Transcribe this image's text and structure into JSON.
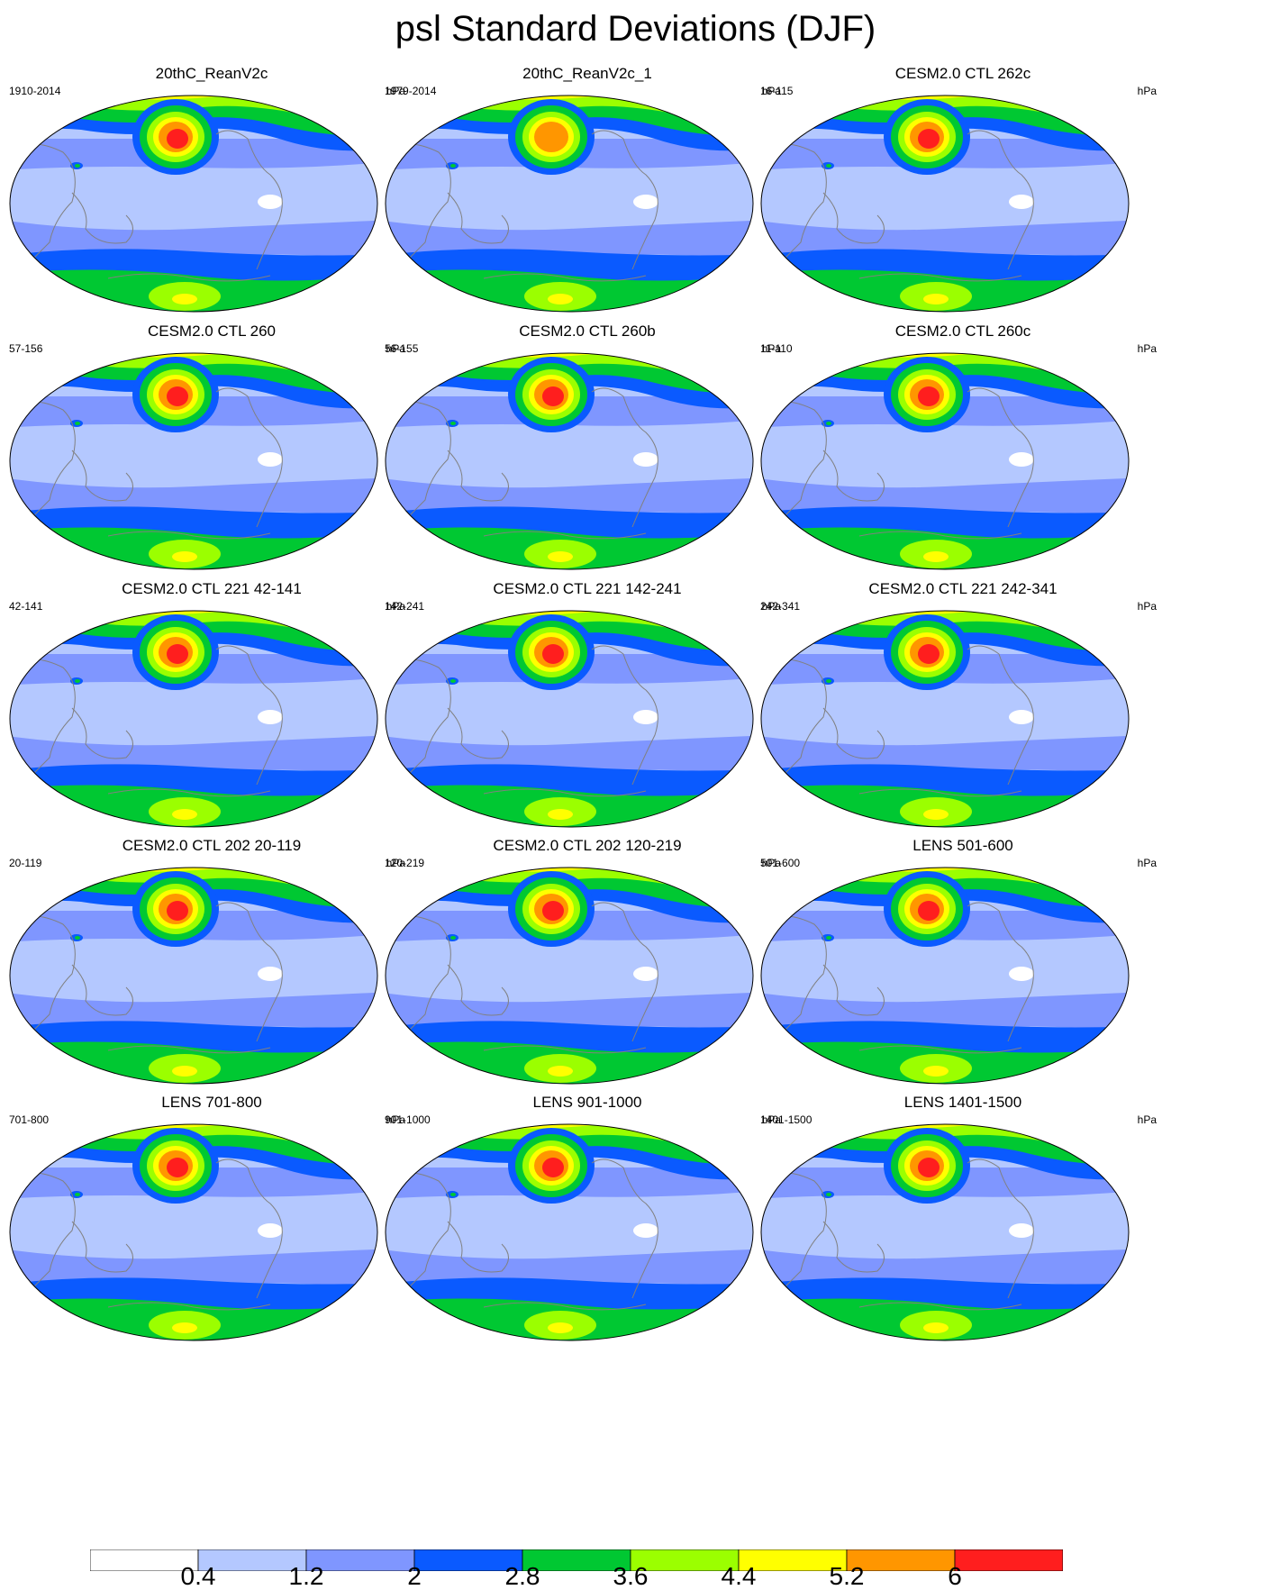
{
  "title": "psl Standard Deviations (DJF)",
  "units": "hPa",
  "panels": [
    {
      "title": "20thC_ReanV2c",
      "years": "1910-2014",
      "units": "hPa",
      "aleutian_max": 6.0,
      "ne_atlantic_max": 6.0
    },
    {
      "title": "20thC_ReanV2c_1",
      "years": "1979-2014",
      "units": "hPa",
      "aleutian_max": 5.2,
      "ne_atlantic_max": 6.0
    },
    {
      "title": "CESM2.0 CTL 262c",
      "years": "16-115",
      "units": "hPa",
      "aleutian_max": 6.0,
      "ne_atlantic_max": 6.0
    },
    {
      "title": "CESM2.0 CTL 260",
      "years": "57-156",
      "units": "hPa",
      "aleutian_max": 6.0,
      "ne_atlantic_max": 6.0
    },
    {
      "title": "CESM2.0 CTL 260b",
      "years": "56-155",
      "units": "hPa",
      "aleutian_max": 6.0,
      "ne_atlantic_max": 5.2
    },
    {
      "title": "CESM2.0 CTL 260c",
      "years": "11-110",
      "units": "hPa",
      "aleutian_max": 6.0,
      "ne_atlantic_max": 6.0
    },
    {
      "title": "CESM2.0 CTL 221 42-141",
      "years": "42-141",
      "units": "hPa",
      "aleutian_max": 6.0,
      "ne_atlantic_max": 6.0
    },
    {
      "title": "CESM2.0 CTL 221 142-241",
      "years": "142-241",
      "units": "hPa",
      "aleutian_max": 6.0,
      "ne_atlantic_max": 6.0
    },
    {
      "title": "CESM2.0 CTL 221 242-341",
      "years": "242-341",
      "units": "hPa",
      "aleutian_max": 6.0,
      "ne_atlantic_max": 6.0
    },
    {
      "title": "CESM2.0 CTL 202 20-119",
      "years": "20-119",
      "units": "hPa",
      "aleutian_max": 6.0,
      "ne_atlantic_max": 5.2
    },
    {
      "title": "CESM2.0 CTL 202 120-219",
      "years": "120-219",
      "units": "hPa",
      "aleutian_max": 6.0,
      "ne_atlantic_max": 6.0
    },
    {
      "title": "LENS 501-600",
      "years": "501-600",
      "units": "hPa",
      "aleutian_max": 6.0,
      "ne_atlantic_max": 5.2
    },
    {
      "title": "LENS 701-800",
      "years": "701-800",
      "units": "hPa",
      "aleutian_max": 6.0,
      "ne_atlantic_max": 5.2
    },
    {
      "title": "LENS 901-1000",
      "years": "901-1000",
      "units": "hPa",
      "aleutian_max": 6.0,
      "ne_atlantic_max": 5.2
    },
    {
      "title": "LENS 1401-1500",
      "years": "1401-1500",
      "units": "hPa",
      "aleutian_max": 6.0,
      "ne_atlantic_max": 5.2
    }
  ],
  "colorbar": {
    "levels": [
      "0.4",
      "1.2",
      "2",
      "2.8",
      "3.6",
      "4.4",
      "5.2",
      "6"
    ],
    "colors": [
      "#ffffff",
      "#b4c8ff",
      "#7f96ff",
      "#0a5aff",
      "#00c832",
      "#9bff00",
      "#ffff00",
      "#ff9600",
      "#ff1e1e"
    ]
  },
  "style": {
    "coastline": "#808080",
    "outline": "#000000"
  }
}
